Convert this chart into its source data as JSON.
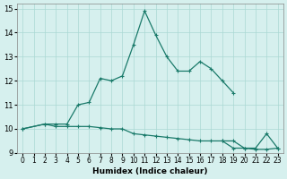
{
  "xlabel": "Humidex (Indice chaleur)",
  "x_values": [
    0,
    1,
    2,
    3,
    4,
    5,
    6,
    7,
    8,
    9,
    10,
    11,
    12,
    13,
    14,
    15,
    16,
    17,
    18,
    19,
    20,
    21,
    22,
    23
  ],
  "line1_y": [
    10.0,
    null,
    10.2,
    10.2,
    10.2,
    11.0,
    11.1,
    12.1,
    12.0,
    12.2,
    13.5,
    14.9,
    13.9,
    13.0,
    12.4,
    12.4,
    12.8,
    12.5,
    12.0,
    11.5,
    null,
    null,
    null,
    null
  ],
  "line2_y": [
    10.0,
    null,
    10.2,
    10.1,
    10.1,
    10.1,
    10.1,
    10.05,
    10.0,
    10.0,
    9.8,
    9.75,
    9.7,
    9.65,
    9.6,
    9.55,
    9.5,
    9.5,
    9.5,
    9.5,
    9.2,
    9.2,
    9.8,
    9.2
  ],
  "line3_y": [
    null,
    null,
    null,
    null,
    null,
    null,
    null,
    null,
    null,
    null,
    null,
    null,
    null,
    null,
    null,
    null,
    null,
    null,
    9.5,
    9.2,
    9.2,
    9.15,
    9.15,
    9.2
  ],
  "ylim": [
    9.0,
    15.2
  ],
  "yticks": [
    9,
    10,
    11,
    12,
    13,
    14,
    15
  ],
  "xlim": [
    -0.5,
    23.5
  ],
  "line_color": "#1a7a6a",
  "bg_color": "#d6f0ee",
  "grid_color": "#aad8d3"
}
